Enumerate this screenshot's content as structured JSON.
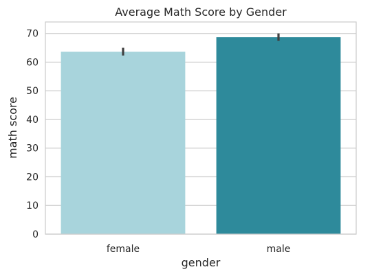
{
  "chart_data": {
    "type": "bar",
    "title": "Average Math Score by Gender",
    "xlabel": "gender",
    "ylabel": "math score",
    "categories": [
      "female",
      "male"
    ],
    "values": [
      63.6,
      68.7
    ],
    "error_low": [
      62.3,
      67.4
    ],
    "error_high": [
      65.0,
      70.0
    ],
    "colors": [
      "#a8d4dc",
      "#2e8a9b"
    ],
    "error_color": "#404040",
    "ylim": [
      0,
      74
    ],
    "yticks": [
      0,
      10,
      20,
      30,
      40,
      50,
      60,
      70
    ],
    "grid": "horizontal"
  }
}
